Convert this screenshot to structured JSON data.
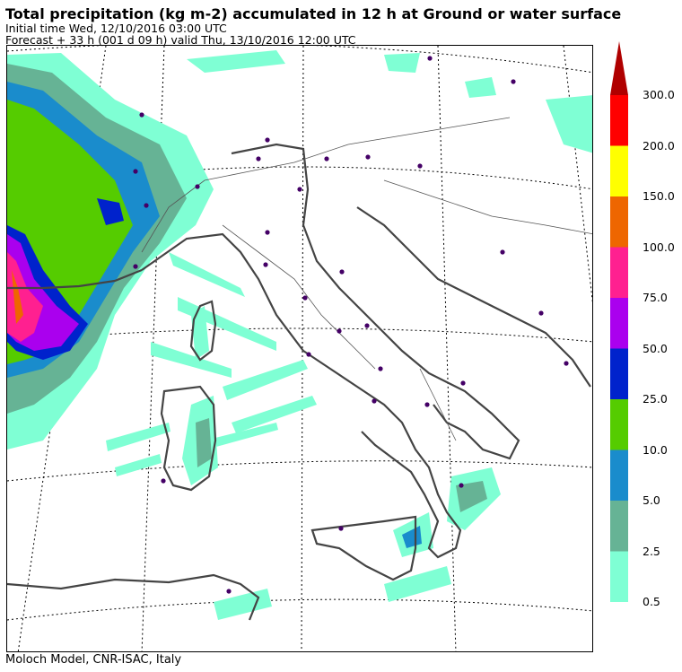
{
  "header": {
    "title": "Total precipitation (kg m-2) accumulated in  12 h at Ground or water surface",
    "initial_time": "Initial time  Wed, 12/10/2016  03:00 UTC",
    "forecast": "Forecast  +  33 h  (001 d 09 h)  valid Thu, 13/10/2016 12:00 UTC"
  },
  "footer": {
    "credit": "Moloch Model, CNR-ISAC, Italy"
  },
  "colorbar": {
    "levels": [
      {
        "label": "0.5",
        "color": "#7fffd4"
      },
      {
        "label": "2.5",
        "color": "#66b395"
      },
      {
        "label": "5.0",
        "color": "#1a8ccc"
      },
      {
        "label": "10.0",
        "color": "#55cc00"
      },
      {
        "label": "25.0",
        "color": "#0022cc"
      },
      {
        "label": "50.0",
        "color": "#aa00ee"
      },
      {
        "label": "75.0",
        "color": "#ff2090"
      },
      {
        "label": "100.0",
        "color": "#ee6600"
      },
      {
        "label": "150.0",
        "color": "#ffff00"
      },
      {
        "label": "200.0",
        "color": "#ff0000"
      },
      {
        "label": "300.0",
        "color": "#b00000"
      }
    ]
  }
}
